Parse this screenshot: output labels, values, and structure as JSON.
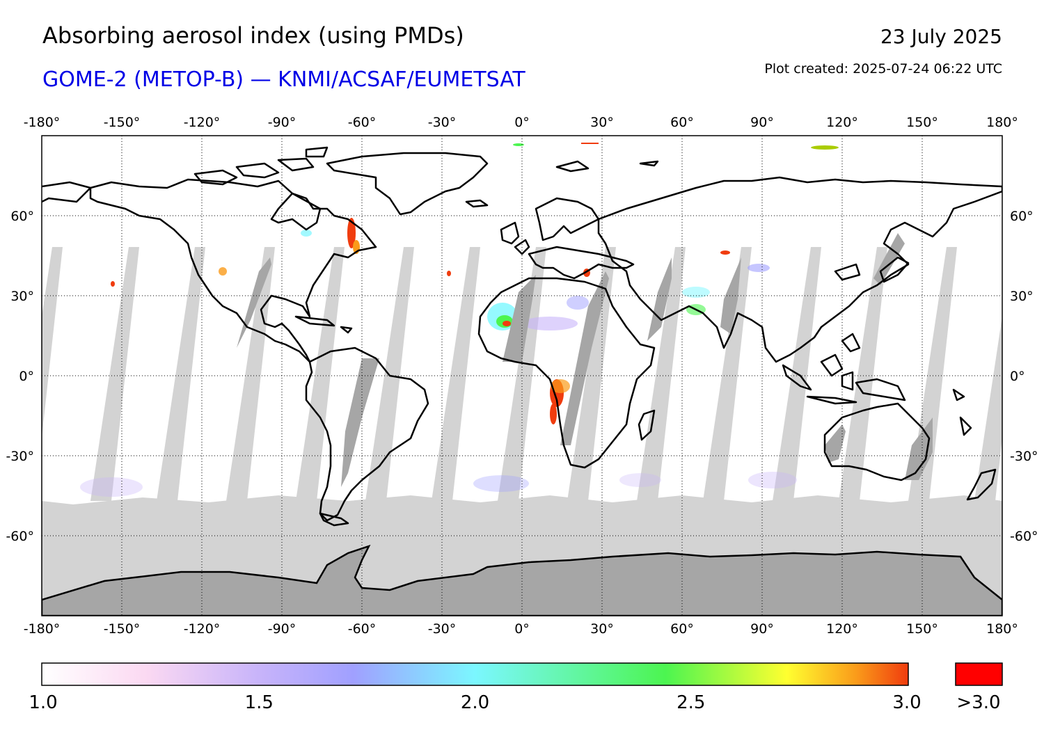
{
  "header": {
    "title": "Absorbing aerosol index (using PMDs)",
    "subtitle": "GOME-2 (METOP-B) — KNMI/ACSAF/EUMETSAT",
    "date": "23 July 2025",
    "created": "Plot created: 2025-07-24 06:22 UTC"
  },
  "map": {
    "projection": "equirectangular",
    "lon_range": [
      -180,
      180
    ],
    "lat_range": [
      -90,
      90
    ],
    "lon_ticks": [
      "-180°",
      "-150°",
      "-120°",
      "-90°",
      "-60°",
      "-30°",
      "0°",
      "30°",
      "60°",
      "90°",
      "120°",
      "150°",
      "180°"
    ],
    "lat_ticks": [
      "60°",
      "30°",
      "0°",
      "-30°",
      "-60°"
    ],
    "grid": "dotted",
    "colors": {
      "no_data": "#d3d3d3",
      "land_no_data": "#a6a6a6",
      "coastline": "#000000"
    }
  },
  "colorbar": {
    "ticks": [
      "1.0",
      "1.5",
      "2.0",
      "2.5",
      "3.0"
    ],
    "over_label": ">3.0",
    "over_color": "#ff0000",
    "stops": [
      "#ffffff",
      "#fbd9f2",
      "#c8b4fa",
      "#a0a0ff",
      "#7bf7ff",
      "#4cf550",
      "#ffff30",
      "#fa9b1a",
      "#f03c0e"
    ]
  }
}
